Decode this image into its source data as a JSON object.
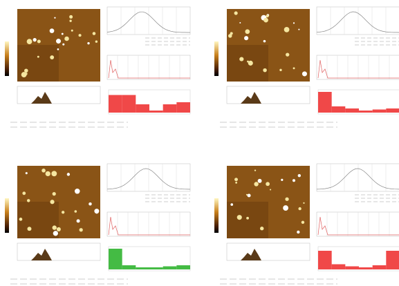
{
  "panels": [
    {
      "bar_color": "#f04848",
      "bars": [
        0.85,
        0.85,
        0.4,
        0.1,
        0.4,
        0.5
      ]
    },
    {
      "bar_color": "#f04848",
      "bars": [
        1,
        0.3,
        0.2,
        0.1,
        0.15,
        0.2
      ]
    },
    {
      "bar_color": "#44bb44",
      "bars": [
        1,
        0.2,
        0.1,
        0.1,
        0.15,
        0.2
      ]
    },
    {
      "bar_color": "#f04848",
      "bars": [
        0.9,
        0.25,
        0.15,
        0.1,
        0.2,
        0.9
      ]
    }
  ]
}
